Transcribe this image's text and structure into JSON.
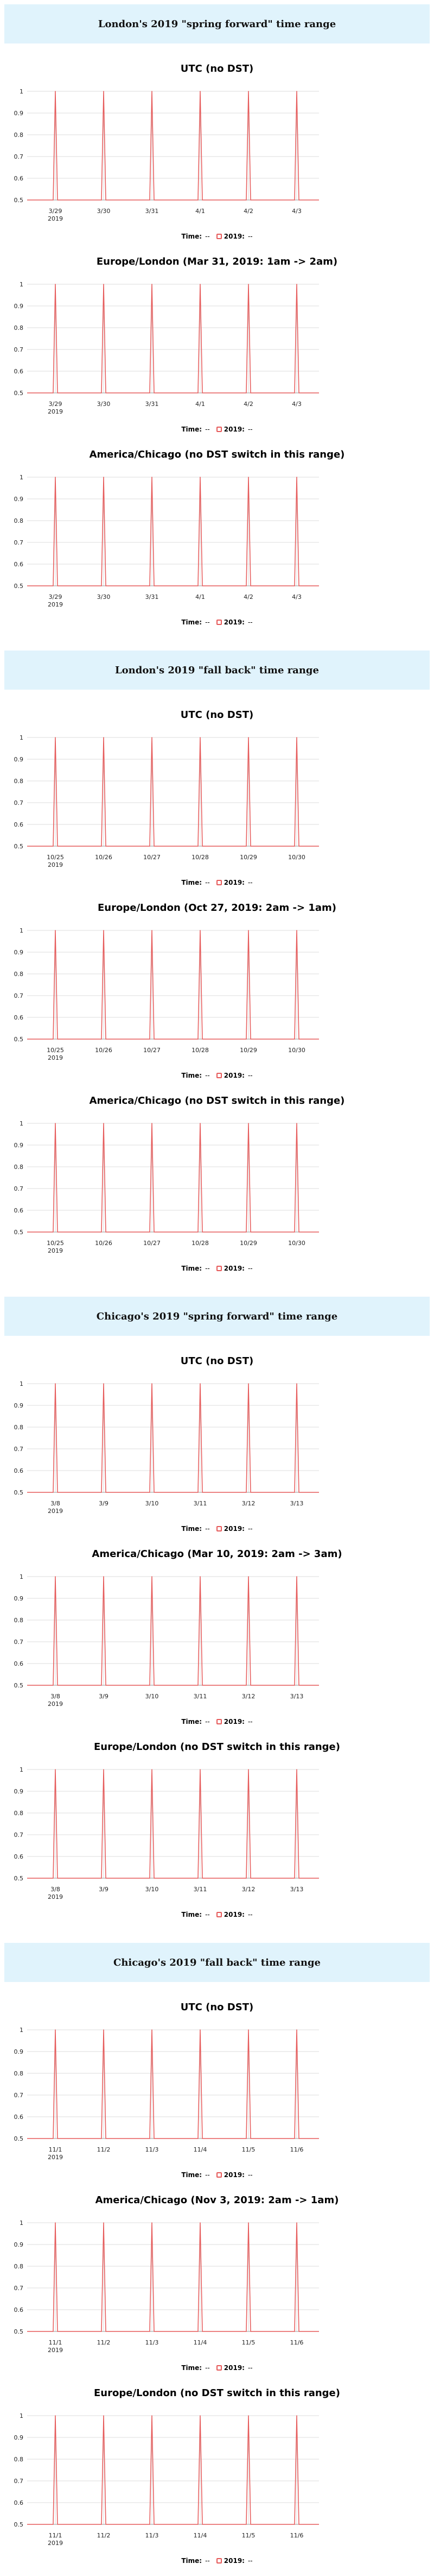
{
  "colors": {
    "header_bg": "#e0f3fc",
    "series": "#e65a5a",
    "grid": "#dddddd",
    "axis": "#999999"
  },
  "legend": {
    "time_label": "Time:",
    "time_value": "--",
    "series_label": "2019:",
    "series_value": "--"
  },
  "sections": [
    {
      "title": "London's 2019 \"spring forward\" time range",
      "charts": [
        {
          "title": "UTC (no DST)",
          "year": "2019",
          "ticks": [
            "3/29",
            "3/30",
            "3/31",
            "4/1",
            "4/2",
            "4/3"
          ]
        },
        {
          "title": "Europe/London (Mar 31, 2019: 1am -> 2am)",
          "year": "2019",
          "ticks": [
            "3/29",
            "3/30",
            "3/31",
            "4/1",
            "4/2",
            "4/3"
          ]
        },
        {
          "title": "America/Chicago (no DST switch in this range)",
          "year": "2019",
          "ticks": [
            "3/29",
            "3/30",
            "3/31",
            "4/1",
            "4/2",
            "4/3"
          ]
        }
      ]
    },
    {
      "title": "London's 2019 \"fall back\" time range",
      "charts": [
        {
          "title": "UTC (no DST)",
          "year": "2019",
          "ticks": [
            "10/25",
            "10/26",
            "10/27",
            "10/28",
            "10/29",
            "10/30"
          ]
        },
        {
          "title": "Europe/London (Oct 27, 2019: 2am -> 1am)",
          "year": "2019",
          "ticks": [
            "10/25",
            "10/26",
            "10/27",
            "10/28",
            "10/29",
            "10/30"
          ]
        },
        {
          "title": "America/Chicago (no DST switch in this range)",
          "year": "2019",
          "ticks": [
            "10/25",
            "10/26",
            "10/27",
            "10/28",
            "10/29",
            "10/30"
          ]
        }
      ]
    },
    {
      "title": "Chicago's 2019 \"spring forward\" time range",
      "charts": [
        {
          "title": "UTC (no DST)",
          "year": "2019",
          "ticks": [
            "3/8",
            "3/9",
            "3/10",
            "3/11",
            "3/12",
            "3/13"
          ]
        },
        {
          "title": "America/Chicago (Mar 10, 2019: 2am -> 3am)",
          "year": "2019",
          "ticks": [
            "3/8",
            "3/9",
            "3/10",
            "3/11",
            "3/12",
            "3/13"
          ]
        },
        {
          "title": "Europe/London (no DST switch in this range)",
          "year": "2019",
          "ticks": [
            "3/8",
            "3/9",
            "3/10",
            "3/11",
            "3/12",
            "3/13"
          ]
        }
      ]
    },
    {
      "title": "Chicago's 2019 \"fall back\" time range",
      "charts": [
        {
          "title": "UTC (no DST)",
          "year": "2019",
          "ticks": [
            "11/1",
            "11/2",
            "11/3",
            "11/4",
            "11/5",
            "11/6"
          ]
        },
        {
          "title": "America/Chicago (Nov 3, 2019: 2am -> 1am)",
          "year": "2019",
          "ticks": [
            "11/1",
            "11/2",
            "11/3",
            "11/4",
            "11/5",
            "11/6"
          ]
        },
        {
          "title": "Europe/London (no DST switch in this range)",
          "year": "2019",
          "ticks": [
            "11/1",
            "11/2",
            "11/3",
            "11/4",
            "11/5",
            "11/6"
          ]
        }
      ]
    }
  ],
  "chart_data": [
    {
      "type": "line",
      "title": "UTC (no DST)",
      "series": [
        {
          "name": "2019",
          "x": [
            "3/29",
            "3/30",
            "3/31",
            "4/1",
            "4/2",
            "4/3"
          ],
          "values": [
            1,
            1,
            1,
            1,
            1,
            1
          ]
        }
      ],
      "baseline": 0.5,
      "ylim": [
        0.5,
        1
      ],
      "yticks": [
        0.5,
        0.6,
        0.7,
        0.8,
        0.9,
        1
      ],
      "grid": true,
      "legend": "bottom"
    },
    {
      "type": "line",
      "title": "Europe/London (Mar 31, 2019: 1am -> 2am)",
      "series": [
        {
          "name": "2019",
          "x": [
            "3/29",
            "3/30",
            "3/31",
            "4/1",
            "4/2",
            "4/3"
          ],
          "values": [
            1,
            1,
            1,
            1,
            1,
            1
          ]
        }
      ],
      "baseline": 0.5,
      "ylim": [
        0.5,
        1
      ],
      "yticks": [
        0.5,
        0.6,
        0.7,
        0.8,
        0.9,
        1
      ],
      "grid": true,
      "legend": "bottom"
    },
    {
      "type": "line",
      "title": "America/Chicago (no DST switch in this range)",
      "series": [
        {
          "name": "2019",
          "x": [
            "3/29",
            "3/30",
            "3/31",
            "4/1",
            "4/2",
            "4/3"
          ],
          "values": [
            1,
            1,
            1,
            1,
            1,
            1
          ]
        }
      ],
      "baseline": 0.5,
      "ylim": [
        0.5,
        1
      ],
      "yticks": [
        0.5,
        0.6,
        0.7,
        0.8,
        0.9,
        1
      ],
      "grid": true,
      "legend": "bottom"
    },
    {
      "type": "line",
      "title": "UTC (no DST)",
      "series": [
        {
          "name": "2019",
          "x": [
            "10/25",
            "10/26",
            "10/27",
            "10/28",
            "10/29",
            "10/30"
          ],
          "values": [
            1,
            1,
            1,
            1,
            1,
            1
          ]
        }
      ],
      "baseline": 0.5,
      "ylim": [
        0.5,
        1
      ],
      "yticks": [
        0.5,
        0.6,
        0.7,
        0.8,
        0.9,
        1
      ],
      "grid": true,
      "legend": "bottom"
    },
    {
      "type": "line",
      "title": "Europe/London (Oct 27, 2019: 2am -> 1am)",
      "series": [
        {
          "name": "2019",
          "x": [
            "10/25",
            "10/26",
            "10/27",
            "10/28",
            "10/29",
            "10/30"
          ],
          "values": [
            1,
            1,
            1,
            1,
            1,
            1
          ]
        }
      ],
      "baseline": 0.5,
      "ylim": [
        0.5,
        1
      ],
      "yticks": [
        0.5,
        0.6,
        0.7,
        0.8,
        0.9,
        1
      ],
      "grid": true,
      "legend": "bottom"
    },
    {
      "type": "line",
      "title": "America/Chicago (no DST switch in this range)",
      "series": [
        {
          "name": "2019",
          "x": [
            "10/25",
            "10/26",
            "10/27",
            "10/28",
            "10/29",
            "10/30"
          ],
          "values": [
            1,
            1,
            1,
            1,
            1,
            1
          ]
        }
      ],
      "baseline": 0.5,
      "ylim": [
        0.5,
        1
      ],
      "yticks": [
        0.5,
        0.6,
        0.7,
        0.8,
        0.9,
        1
      ],
      "grid": true,
      "legend": "bottom"
    },
    {
      "type": "line",
      "title": "UTC (no DST)",
      "series": [
        {
          "name": "2019",
          "x": [
            "3/8",
            "3/9",
            "3/10",
            "3/11",
            "3/12",
            "3/13"
          ],
          "values": [
            1,
            1,
            1,
            1,
            1,
            1
          ]
        }
      ],
      "baseline": 0.5,
      "ylim": [
        0.5,
        1
      ],
      "yticks": [
        0.5,
        0.6,
        0.7,
        0.8,
        0.9,
        1
      ],
      "grid": true,
      "legend": "bottom"
    },
    {
      "type": "line",
      "title": "America/Chicago (Mar 10, 2019: 2am -> 3am)",
      "series": [
        {
          "name": "2019",
          "x": [
            "3/8",
            "3/9",
            "3/10",
            "3/11",
            "3/12",
            "3/13"
          ],
          "values": [
            1,
            1,
            1,
            1,
            1,
            1
          ]
        }
      ],
      "baseline": 0.5,
      "ylim": [
        0.5,
        1
      ],
      "yticks": [
        0.5,
        0.6,
        0.7,
        0.8,
        0.9,
        1
      ],
      "grid": true,
      "legend": "bottom"
    },
    {
      "type": "line",
      "title": "Europe/London (no DST switch in this range)",
      "series": [
        {
          "name": "2019",
          "x": [
            "3/8",
            "3/9",
            "3/10",
            "3/11",
            "3/12",
            "3/13"
          ],
          "values": [
            1,
            1,
            1,
            1,
            1,
            1
          ]
        }
      ],
      "baseline": 0.5,
      "ylim": [
        0.5,
        1
      ],
      "yticks": [
        0.5,
        0.6,
        0.7,
        0.8,
        0.9,
        1
      ],
      "grid": true,
      "legend": "bottom"
    },
    {
      "type": "line",
      "title": "UTC (no DST)",
      "series": [
        {
          "name": "2019",
          "x": [
            "11/1",
            "11/2",
            "11/3",
            "11/4",
            "11/5",
            "11/6"
          ],
          "values": [
            1,
            1,
            1,
            1,
            1,
            1
          ]
        }
      ],
      "baseline": 0.5,
      "ylim": [
        0.5,
        1
      ],
      "yticks": [
        0.5,
        0.6,
        0.7,
        0.8,
        0.9,
        1
      ],
      "grid": true,
      "legend": "bottom"
    },
    {
      "type": "line",
      "title": "America/Chicago (Nov 3, 2019: 2am -> 1am)",
      "series": [
        {
          "name": "2019",
          "x": [
            "11/1",
            "11/2",
            "11/3",
            "11/4",
            "11/5",
            "11/6"
          ],
          "values": [
            1,
            1,
            1,
            1,
            1,
            1
          ]
        }
      ],
      "baseline": 0.5,
      "ylim": [
        0.5,
        1
      ],
      "yticks": [
        0.5,
        0.6,
        0.7,
        0.8,
        0.9,
        1
      ],
      "grid": true,
      "legend": "bottom"
    },
    {
      "type": "line",
      "title": "Europe/London (no DST switch in this range)",
      "series": [
        {
          "name": "2019",
          "x": [
            "11/1",
            "11/2",
            "11/3",
            "11/4",
            "11/5",
            "11/6"
          ],
          "values": [
            1,
            1,
            1,
            1,
            1,
            1
          ]
        }
      ],
      "baseline": 0.5,
      "ylim": [
        0.5,
        1
      ],
      "yticks": [
        0.5,
        0.6,
        0.7,
        0.8,
        0.9,
        1
      ],
      "grid": true,
      "legend": "bottom"
    }
  ]
}
